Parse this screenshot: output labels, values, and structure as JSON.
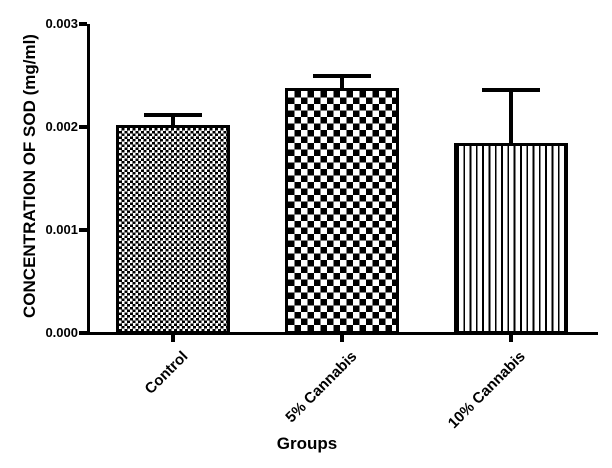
{
  "figure": {
    "background_color": "#ffffff",
    "ink_color": "#000000",
    "style": "black-and-white patterned bar graph with upper error bars"
  },
  "chart_data": {
    "type": "bar",
    "title": "",
    "categories": [
      "Control",
      "5% Cannabis",
      "10% Cannabis"
    ],
    "values": [
      0.00202,
      0.00238,
      0.00184
    ],
    "errors_upper": [
      0.0001,
      0.00012,
      0.00052
    ],
    "error_bar_style": "upper only, capped",
    "bar_patterns": [
      "fine-checkerboard",
      "coarse-checkerboard",
      "vertical-stripes"
    ],
    "xlabel": "Groups",
    "ylabel": "CONCENTRATION OF SOD (mg/ml)",
    "ylim": [
      0,
      0.003
    ],
    "ytick_labels": [
      "0.000",
      "0.001",
      "0.002",
      "0.003"
    ],
    "grid": false,
    "legend": false
  }
}
